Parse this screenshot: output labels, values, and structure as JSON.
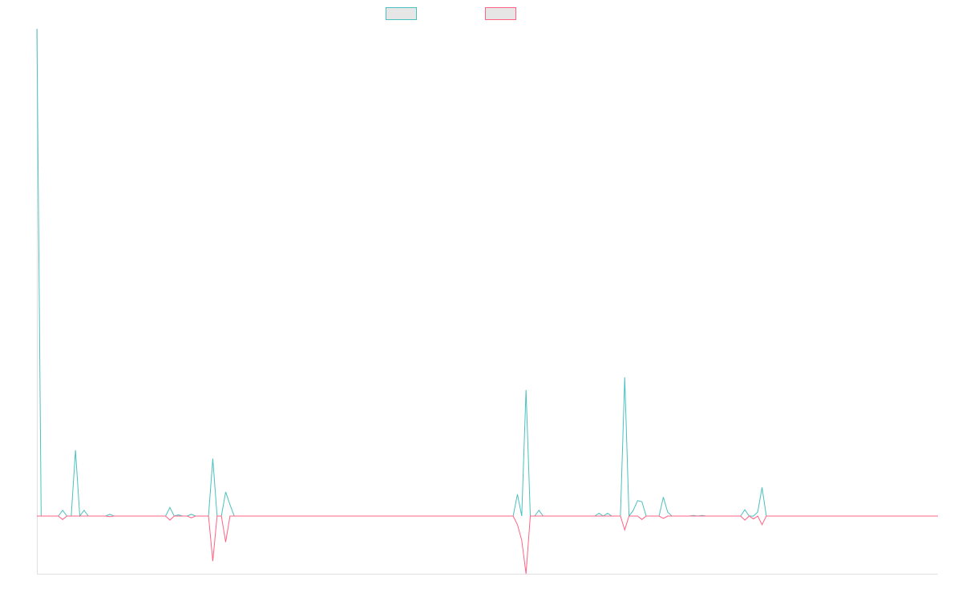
{
  "chart_data": {
    "type": "line",
    "title": "",
    "xlabel": "",
    "ylabel": "",
    "grid": false,
    "legend_position": "top-center",
    "x_count": 140,
    "ylim": [
      -1.0,
      8.5
    ],
    "series": [
      {
        "color": "#4bc0c0",
        "points": [
          [
            0,
            8.5
          ],
          [
            1,
            0
          ],
          [
            5,
            0
          ],
          [
            6,
            0.1
          ],
          [
            7,
            0
          ],
          [
            8,
            0
          ],
          [
            9,
            1.15
          ],
          [
            10,
            0
          ],
          [
            11,
            0.1
          ],
          [
            12,
            0
          ],
          [
            16,
            0
          ],
          [
            17,
            0.03
          ],
          [
            18,
            0
          ],
          [
            30,
            0
          ],
          [
            31,
            0.15
          ],
          [
            32,
            0
          ],
          [
            33,
            0.02
          ],
          [
            34,
            0
          ],
          [
            35,
            0
          ],
          [
            36,
            0.03
          ],
          [
            37,
            0
          ],
          [
            39,
            0
          ],
          [
            40,
            0
          ],
          [
            41,
            1.0
          ],
          [
            42,
            0
          ],
          [
            43,
            0
          ],
          [
            44,
            0.42
          ],
          [
            45,
            0.2
          ],
          [
            46,
            0
          ],
          [
            111,
            0
          ],
          [
            112,
            0.38
          ],
          [
            113,
            0
          ],
          [
            114,
            2.2
          ],
          [
            115,
            0
          ],
          [
            116,
            0
          ],
          [
            117,
            0.1
          ],
          [
            118,
            0
          ],
          [
            130,
            0
          ],
          [
            131,
            0.05
          ],
          [
            132,
            0
          ],
          [
            133,
            0.05
          ],
          [
            134,
            0
          ],
          [
            136,
            0
          ],
          [
            137,
            2.42
          ],
          [
            138,
            0
          ],
          [
            139,
            0.1
          ],
          [
            140,
            0.27
          ],
          [
            141,
            0.25
          ],
          [
            142,
            0
          ],
          [
            145,
            0
          ],
          [
            146,
            0.33
          ],
          [
            147,
            0.07
          ],
          [
            148,
            0
          ],
          [
            152,
            0
          ],
          [
            153,
            0.01
          ],
          [
            154,
            0
          ],
          [
            155,
            0.01
          ],
          [
            156,
            0
          ],
          [
            164,
            0
          ],
          [
            165,
            0.11
          ],
          [
            166,
            0
          ],
          [
            167,
            0
          ],
          [
            168,
            0.07
          ],
          [
            169,
            0.5
          ],
          [
            170,
            0
          ],
          [
            210,
            0
          ]
        ]
      },
      {
        "color": "#ff6384",
        "points": [
          [
            0,
            0
          ],
          [
            5,
            0
          ],
          [
            6,
            -0.06
          ],
          [
            7,
            0
          ],
          [
            8,
            0
          ],
          [
            9,
            0
          ],
          [
            16,
            0
          ],
          [
            17,
            -0.01
          ],
          [
            18,
            0
          ],
          [
            30,
            0
          ],
          [
            31,
            -0.07
          ],
          [
            32,
            0
          ],
          [
            33,
            0
          ],
          [
            34,
            0
          ],
          [
            35,
            0
          ],
          [
            36,
            -0.03
          ],
          [
            37,
            0
          ],
          [
            39,
            0
          ],
          [
            40,
            0
          ],
          [
            41,
            -0.78
          ],
          [
            42,
            0
          ],
          [
            43,
            0
          ],
          [
            44,
            -0.45
          ],
          [
            45,
            0
          ],
          [
            111,
            0
          ],
          [
            112,
            -0.15
          ],
          [
            113,
            -0.42
          ],
          [
            114,
            -1.0
          ],
          [
            115,
            0
          ],
          [
            136,
            0
          ],
          [
            137,
            -0.24
          ],
          [
            138,
            0
          ],
          [
            139,
            0
          ],
          [
            140,
            0
          ],
          [
            141,
            -0.06
          ],
          [
            142,
            0
          ],
          [
            145,
            0
          ],
          [
            146,
            -0.04
          ],
          [
            147,
            0
          ],
          [
            164,
            0
          ],
          [
            165,
            -0.07
          ],
          [
            166,
            0
          ],
          [
            167,
            -0.05
          ],
          [
            168,
            0
          ],
          [
            169,
            -0.15
          ],
          [
            170,
            0
          ],
          [
            210,
            0
          ]
        ]
      }
    ]
  }
}
